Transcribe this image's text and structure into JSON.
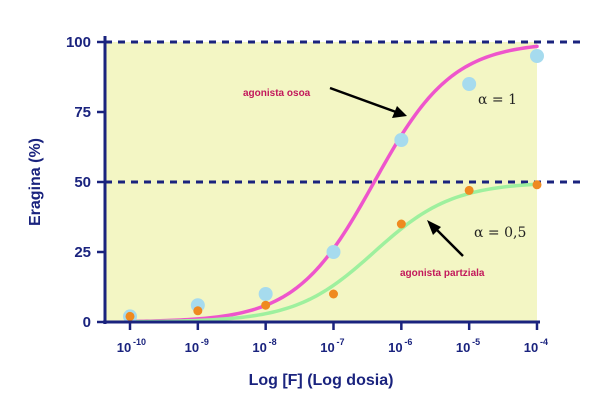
{
  "chart_data": {
    "type": "scatter",
    "xlabel": "Log [F] (Log dosia)",
    "ylabel": "Eragina (%)",
    "ylim": [
      0,
      100
    ],
    "xlim": [
      -10,
      -4
    ],
    "yticks": [
      "0",
      "25",
      "50",
      "75",
      "100"
    ],
    "xticks": [
      {
        "base": "10",
        "exp": "-10"
      },
      {
        "base": "10",
        "exp": "-9"
      },
      {
        "base": "10",
        "exp": "-8"
      },
      {
        "base": "10",
        "exp": "-7"
      },
      {
        "base": "10",
        "exp": "-6"
      },
      {
        "base": "10",
        "exp": "-5"
      },
      {
        "base": "10",
        "exp": "-4"
      }
    ],
    "reference_lines_y": [
      100,
      50
    ],
    "plot_background": "#f3f6c4",
    "series": [
      {
        "name": "agonista osoa",
        "x": [
          -10,
          -9,
          -8,
          -7,
          -6,
          -5,
          -4
        ],
        "y": [
          2,
          6,
          10,
          25,
          65,
          85,
          95
        ],
        "marker_color": "#a6dbee",
        "curve_color": "#ee55cc",
        "curve": {
          "top": 100,
          "ec50_log": -6.4,
          "hill": 0.75
        }
      },
      {
        "name": "agonista partziala",
        "x": [
          -10,
          -9,
          -8,
          -7,
          -6,
          -5,
          -4
        ],
        "y": [
          2,
          4,
          6,
          10,
          35,
          47,
          49
        ],
        "marker_color": "#ef8a20",
        "curve_color": "#9ef09e",
        "curve": {
          "top": 50,
          "ec50_log": -6.4,
          "hill": 0.75
        }
      }
    ],
    "annotations": [
      {
        "text": "agonista osoa",
        "style": "pink"
      },
      {
        "text": "α = 1",
        "style": "alpha"
      },
      {
        "text": "α = 0,5",
        "style": "alpha"
      },
      {
        "text": "agonista partziala",
        "style": "pink"
      }
    ]
  }
}
